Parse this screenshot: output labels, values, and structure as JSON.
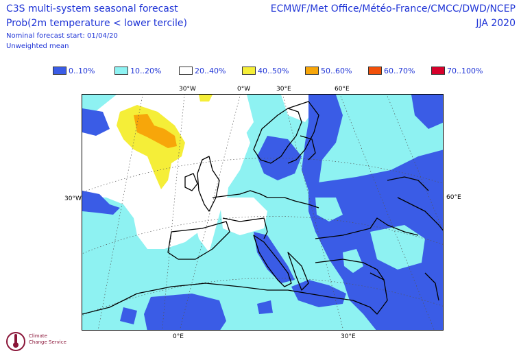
{
  "header": {
    "title_line1": "C3S multi-system seasonal forecast",
    "title_line2": "Prob(2m temperature < lower tercile)",
    "start_note": "Nominal forecast start: 01/04/20",
    "mean_note": "Unweighted mean",
    "centres": "ECMWF/Met Office/Météo-France/CMCC/DWD/NCEP",
    "season": "JJA 2020"
  },
  "legend": [
    {
      "label": "0..10%",
      "color": "#3a5ce6"
    },
    {
      "label": "10..20%",
      "color": "#8ef2f2"
    },
    {
      "label": "20..40%",
      "color": "#ffffff"
    },
    {
      "label": "40..50%",
      "color": "#f5ee38"
    },
    {
      "label": "50..60%",
      "color": "#f7a60a"
    },
    {
      "label": "60..70%",
      "color": "#f2500a"
    },
    {
      "label": "70..100%",
      "color": "#d7002b"
    }
  ],
  "map": {
    "top_labels": [
      "30°W",
      "0°W",
      "30°E",
      "60°E"
    ],
    "bottom_labels": [
      "0°E",
      "30°E"
    ],
    "left_label": "30°W",
    "right_label": "60°E"
  },
  "logo": {
    "text_line1": "Climate",
    "text_line2": "Change Service"
  }
}
